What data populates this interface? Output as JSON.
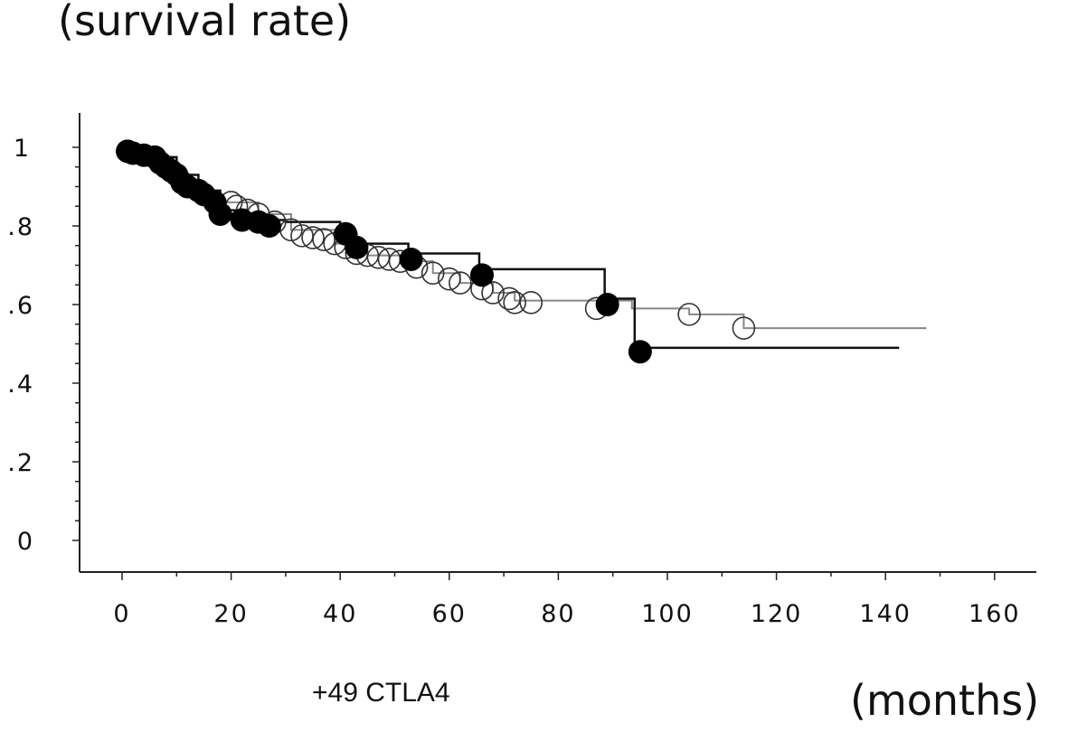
{
  "chart_data": {
    "type": "line",
    "subtype": "kaplan-meier",
    "ylabel": "(survival rate)",
    "xlabel": "(months)",
    "annotation": "+49 CTLA4",
    "xlim": [
      -8,
      168
    ],
    "ylim": [
      -0.08,
      1.08
    ],
    "xticks": [
      0,
      20,
      40,
      60,
      80,
      100,
      120,
      140,
      160
    ],
    "xtick_labels": [
      "0",
      "20",
      "40",
      "60",
      "80",
      "100",
      "120",
      "140",
      "160"
    ],
    "yticks": [
      1,
      0.8,
      0.6,
      0.4,
      0.2,
      0
    ],
    "ytick_labels": [
      "1",
      ".8",
      ".6",
      ".4",
      ".2",
      "0"
    ],
    "grid": false,
    "series": [
      {
        "name": "filled",
        "color": "#000000",
        "line_color": "#111111",
        "marker": "filled-circle",
        "steps": [
          [
            0,
            1
          ],
          [
            1,
            0.99
          ],
          [
            6,
            0.975
          ],
          [
            10,
            0.93
          ],
          [
            14,
            0.89
          ],
          [
            18,
            0.84
          ],
          [
            22,
            0.815
          ],
          [
            30,
            0.81
          ],
          [
            40,
            0.78
          ],
          [
            43,
            0.755
          ],
          [
            52.5,
            0.73
          ],
          [
            65.5,
            0.69
          ],
          [
            88.5,
            0.615
          ],
          [
            94,
            0.49
          ],
          [
            142.5,
            0.49
          ]
        ],
        "points": [
          [
            1,
            0.99
          ],
          [
            2,
            0.985
          ],
          [
            4,
            0.98
          ],
          [
            6,
            0.975
          ],
          [
            7,
            0.96
          ],
          [
            8,
            0.95
          ],
          [
            9,
            0.94
          ],
          [
            10,
            0.93
          ],
          [
            11,
            0.91
          ],
          [
            12,
            0.9
          ],
          [
            14,
            0.89
          ],
          [
            15,
            0.88
          ],
          [
            17,
            0.86
          ],
          [
            18,
            0.83
          ],
          [
            22,
            0.815
          ],
          [
            25,
            0.81
          ],
          [
            27,
            0.8
          ],
          [
            41,
            0.78
          ],
          [
            43,
            0.745
          ],
          [
            53,
            0.715
          ],
          [
            66,
            0.675
          ],
          [
            89,
            0.6
          ],
          [
            95,
            0.48
          ]
        ]
      },
      {
        "name": "open",
        "color": "#333333",
        "line_color": "#888888",
        "marker": "open-circle",
        "steps": [
          [
            18,
            0.86
          ],
          [
            20,
            0.86
          ],
          [
            25,
            0.83
          ],
          [
            31,
            0.79
          ],
          [
            39,
            0.755
          ],
          [
            45,
            0.725
          ],
          [
            51,
            0.71
          ],
          [
            57,
            0.68
          ],
          [
            62,
            0.655
          ],
          [
            68,
            0.63
          ],
          [
            72,
            0.61
          ],
          [
            93.5,
            0.59
          ],
          [
            104,
            0.575
          ],
          [
            114,
            0.54
          ],
          [
            147.5,
            0.54
          ]
        ],
        "points": [
          [
            20,
            0.86
          ],
          [
            21,
            0.85
          ],
          [
            23,
            0.84
          ],
          [
            25,
            0.83
          ],
          [
            28,
            0.81
          ],
          [
            31,
            0.79
          ],
          [
            33,
            0.775
          ],
          [
            35,
            0.77
          ],
          [
            37,
            0.765
          ],
          [
            39,
            0.755
          ],
          [
            41,
            0.745
          ],
          [
            43,
            0.73
          ],
          [
            45,
            0.725
          ],
          [
            47,
            0.72
          ],
          [
            49,
            0.715
          ],
          [
            51,
            0.71
          ],
          [
            54,
            0.695
          ],
          [
            57,
            0.68
          ],
          [
            60,
            0.665
          ],
          [
            62,
            0.655
          ],
          [
            66,
            0.64
          ],
          [
            68,
            0.63
          ],
          [
            71,
            0.615
          ],
          [
            72,
            0.605
          ],
          [
            75,
            0.605
          ],
          [
            87,
            0.59
          ],
          [
            104,
            0.575
          ],
          [
            114,
            0.54
          ]
        ]
      }
    ]
  }
}
